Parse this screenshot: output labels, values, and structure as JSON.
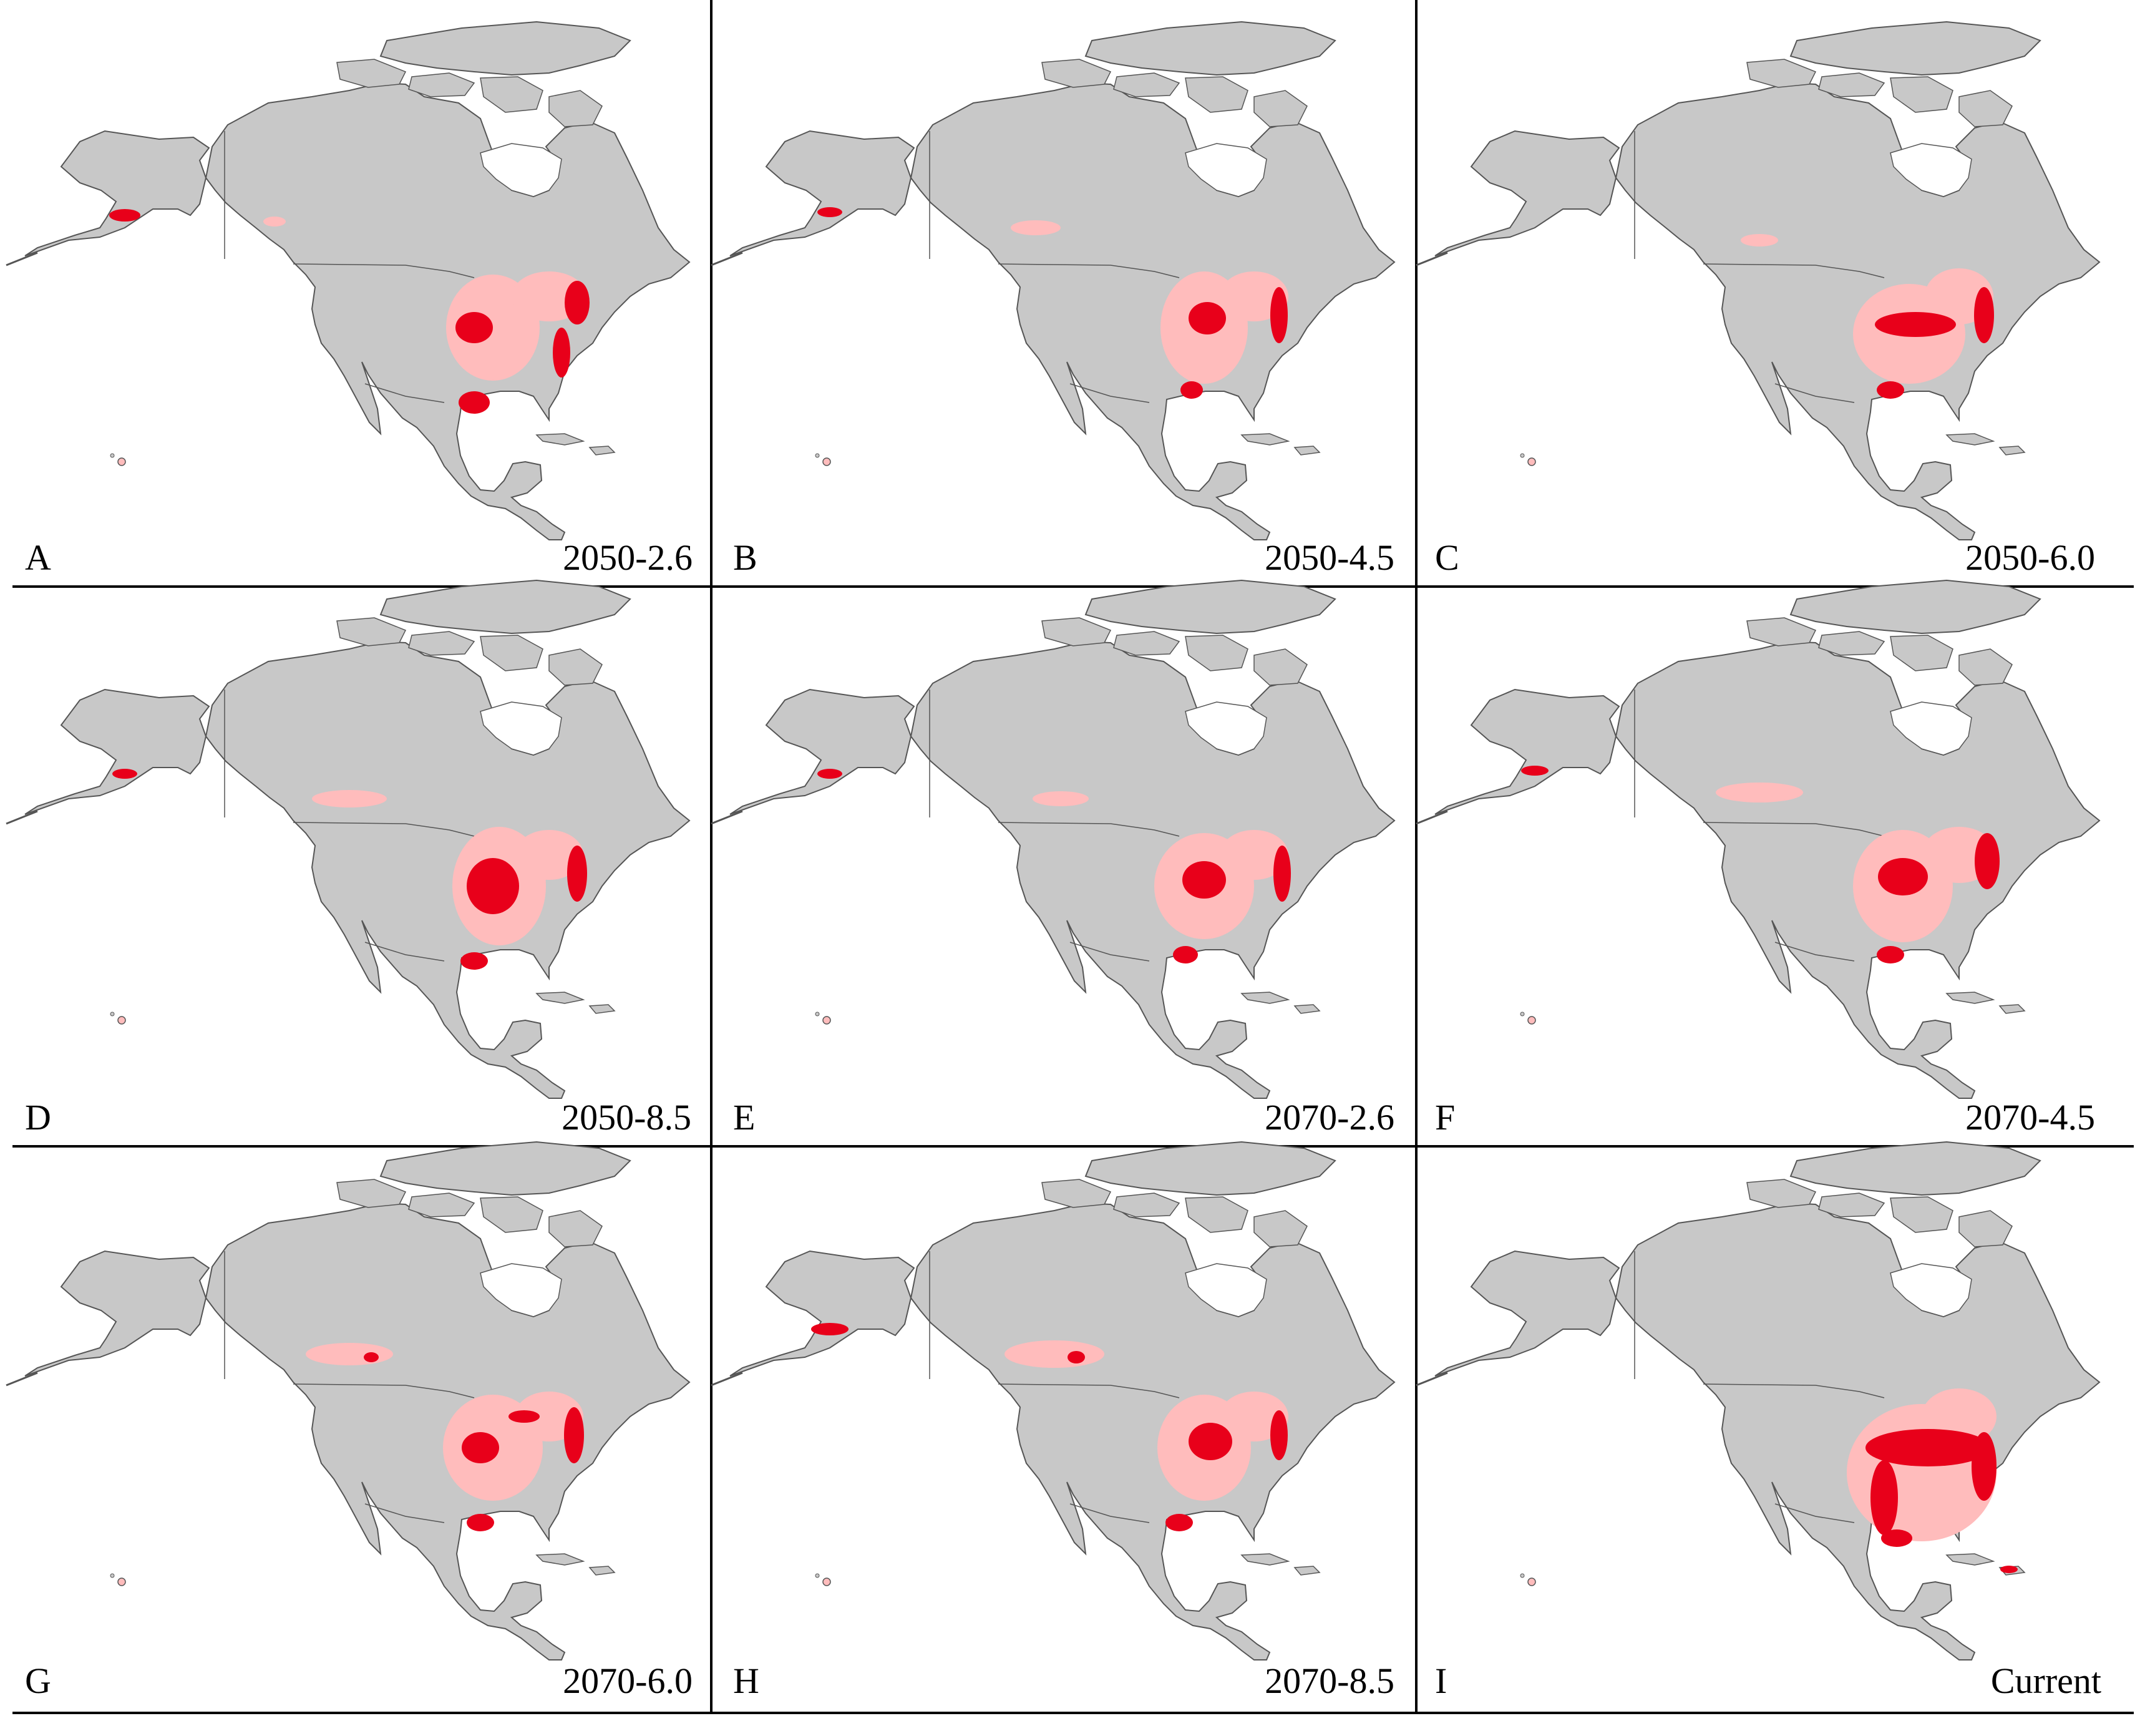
{
  "figure": {
    "panels": [
      {
        "letter": "A",
        "scenario": "2050-2.6"
      },
      {
        "letter": "B",
        "scenario": "2050-4.5"
      },
      {
        "letter": "C",
        "scenario": "2050-6.0"
      },
      {
        "letter": "D",
        "scenario": "2050-8.5"
      },
      {
        "letter": "E",
        "scenario": "2070-2.6"
      },
      {
        "letter": "F",
        "scenario": "2070-4.5"
      },
      {
        "letter": "G",
        "scenario": "2070-6.0"
      },
      {
        "letter": "H",
        "scenario": "2070-8.5"
      },
      {
        "letter": "I",
        "scenario": "Current"
      }
    ],
    "colors": {
      "land": "#c8c8c8",
      "outline": "#555555",
      "low_suitability": "#ffbcbc",
      "high_suitability": "#e8001a",
      "frame": "#000000"
    }
  }
}
